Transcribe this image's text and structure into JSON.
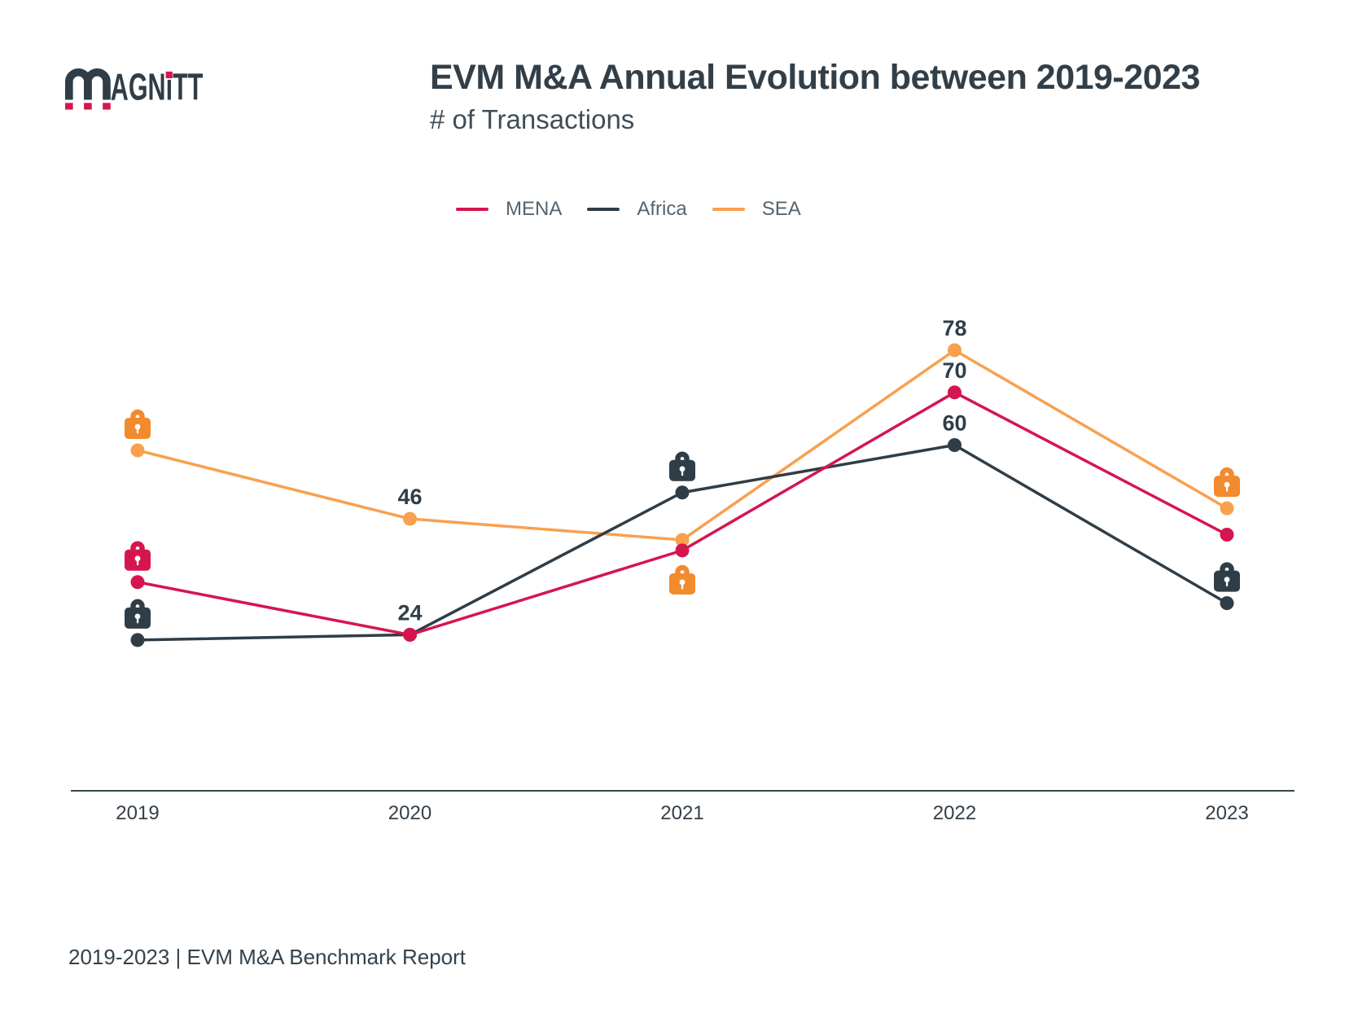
{
  "logo": {
    "brand": "MAGNiTT",
    "letters": "AGNiTT"
  },
  "header": {
    "title": "EVM M&A Annual Evolution between 2019-2023",
    "subtitle": "# of Transactions"
  },
  "legend": {
    "items": [
      {
        "label": "MENA",
        "color": "#D5164E"
      },
      {
        "label": "Africa",
        "color": "#2F3D47"
      },
      {
        "label": "SEA",
        "color": "#F9A04E"
      }
    ]
  },
  "chart_data": {
    "type": "line",
    "title": "EVM M&A Annual Evolution between 2019-2023",
    "ylabel": "# of Transactions",
    "categories": [
      "2019",
      "2020",
      "2021",
      "2022",
      "2023"
    ],
    "series": [
      {
        "name": "MENA",
        "color": "#D5164E",
        "values": [
          34,
          24,
          40,
          70,
          43
        ],
        "labels": [
          null,
          "24",
          null,
          "70",
          null
        ],
        "locks": [
          {
            "index": 0,
            "position": "above"
          }
        ]
      },
      {
        "name": "Africa",
        "color": "#2F3D47",
        "values": [
          23,
          24,
          51,
          60,
          30
        ],
        "labels": [
          null,
          null,
          null,
          "60",
          null
        ],
        "locks": [
          {
            "index": 0,
            "position": "above"
          },
          {
            "index": 2,
            "position": "above"
          },
          {
            "index": 4,
            "position": "above"
          }
        ]
      },
      {
        "name": "SEA",
        "color": "#F9A04E",
        "lock_color": "#F28A2E",
        "values": [
          59,
          46,
          42,
          78,
          48
        ],
        "labels": [
          null,
          "46",
          null,
          "78",
          null
        ],
        "locks": [
          {
            "index": 0,
            "position": "above"
          },
          {
            "index": 2,
            "position": "below"
          },
          {
            "index": 4,
            "position": "above"
          }
        ]
      }
    ],
    "locked_values_estimated": true,
    "legend_position": "top",
    "grid": false,
    "ylim": [
      0,
      85
    ]
  },
  "footer": {
    "caption": "2019-2023 | EVM M&A Benchmark Report"
  },
  "colors": {
    "crimson": "#D5164E",
    "dark": "#2F3D47",
    "orange_line": "#F9A04E",
    "orange_lock": "#F28A2E",
    "axis_line": "#37444E",
    "axis_text": "#333F49",
    "value_text": "#2F3E48"
  }
}
